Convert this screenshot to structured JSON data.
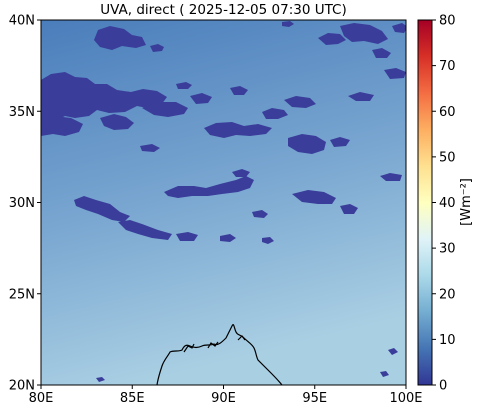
{
  "title": "UVA, direct ( 2025-12-05 07:30 UTC)",
  "map": {
    "lon_range": [
      80,
      100
    ],
    "lat_range": [
      20,
      40
    ],
    "x_ticks": [
      {
        "value": 80,
        "label": "80E"
      },
      {
        "value": 85,
        "label": "85E"
      },
      {
        "value": 90,
        "label": "90E"
      },
      {
        "value": 95,
        "label": "95E"
      },
      {
        "value": 100,
        "label": "100E"
      }
    ],
    "y_ticks": [
      {
        "value": 20,
        "label": "20N"
      },
      {
        "value": 25,
        "label": "25N"
      },
      {
        "value": 30,
        "label": "30N"
      },
      {
        "value": 35,
        "label": "35N"
      },
      {
        "value": 40,
        "label": "40N"
      }
    ],
    "field_colors": {
      "north": "#4a7dbb",
      "mid": "#7aa7d1",
      "south": "#a9cfe3"
    },
    "cloud_color": "#3a3d9a",
    "coastline_color": "#000000"
  },
  "colorbar": {
    "label": "[Wm⁻²]",
    "min": 0,
    "max": 80,
    "ticks": [
      {
        "value": 0,
        "label": "0"
      },
      {
        "value": 10,
        "label": "10"
      },
      {
        "value": 20,
        "label": "20"
      },
      {
        "value": 30,
        "label": "30"
      },
      {
        "value": 40,
        "label": "40"
      },
      {
        "value": 50,
        "label": "50"
      },
      {
        "value": 60,
        "label": "60"
      },
      {
        "value": 70,
        "label": "70"
      },
      {
        "value": 80,
        "label": "80"
      }
    ],
    "colormap": [
      "#313695",
      "#4575b4",
      "#74add1",
      "#abd9e9",
      "#e0f3f8",
      "#ffffbf",
      "#fee090",
      "#fdae61",
      "#f46d43",
      "#d73027",
      "#a50026"
    ]
  }
}
